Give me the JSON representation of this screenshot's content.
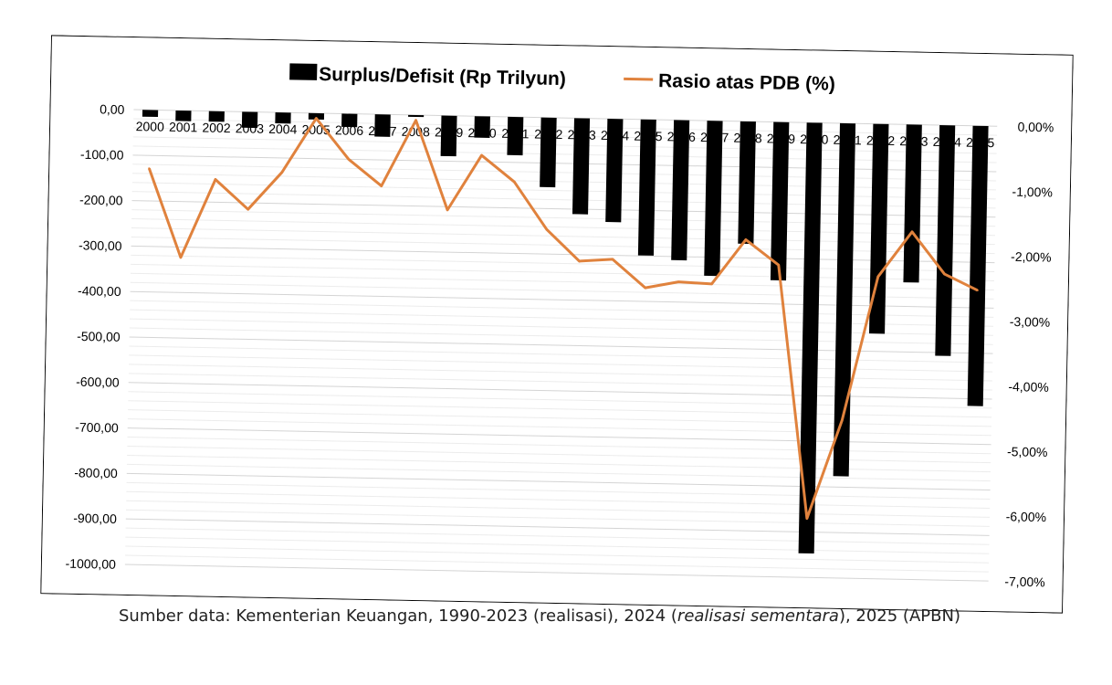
{
  "chart_data": {
    "type": "bar",
    "categories": [
      "2000",
      "2001",
      "2002",
      "2003",
      "2004",
      "2005",
      "2006",
      "2007",
      "2008",
      "2009",
      "2010",
      "2011",
      "2012",
      "2013",
      "2014",
      "2015",
      "2016",
      "2017",
      "2018",
      "2019",
      "2020",
      "2021",
      "2022",
      "2023",
      "2024",
      "2025"
    ],
    "series": [
      {
        "name": "Surplus/Defisit (Rp Trilyun)",
        "type": "bar",
        "axis": "left",
        "color": "#000000",
        "values": [
          -15,
          -23,
          -23,
          -35,
          -24,
          -14,
          -29,
          -49,
          -4,
          -89,
          -47,
          -84,
          -153,
          -211,
          -227,
          -299,
          -308,
          -341,
          -269,
          -348,
          -947,
          -776,
          -461,
          -347,
          -507,
          -616
        ]
      },
      {
        "name": "Rasio atas PDB (%)",
        "type": "line",
        "axis": "right",
        "color": "#E0823D",
        "values": [
          -0.9,
          -2.26,
          -1.05,
          -1.5,
          -0.92,
          -0.08,
          -0.7,
          -1.1,
          -0.08,
          -1.45,
          -0.6,
          -1.0,
          -1.72,
          -2.2,
          -2.16,
          -2.59,
          -2.49,
          -2.51,
          -1.82,
          -2.2,
          -6.09,
          -4.57,
          -2.35,
          -1.65,
          -2.29,
          -2.53
        ]
      }
    ],
    "title": "",
    "xlabel": "",
    "ylabel": "",
    "ylim": [
      -1000,
      0
    ],
    "y2lim": [
      -7,
      0
    ],
    "y_ticks": [
      "0,00",
      "-100,00",
      "-200,00",
      "-300,00",
      "-400,00",
      "-500,00",
      "-600,00",
      "-700,00",
      "-800,00",
      "-900,00",
      "-1000,00"
    ],
    "y2_ticks": [
      "0,00%",
      "-1,00%",
      "-2,00%",
      "-3,00%",
      "-4,00%",
      "-5,00%",
      "-6,00%",
      "-7,00%"
    ],
    "grid": true,
    "legend": "top-center"
  },
  "legend": {
    "bar_label": "Surplus/Defisit (Rp Trilyun)",
    "line_label": "Rasio atas PDB (%)"
  },
  "source": {
    "prefix": "Sumber data: Kementerian Keuangan, 1990-2023 (realisasi), 2024 (",
    "italic": "realisasi sementara",
    "suffix": "), 2025 (APBN)"
  }
}
